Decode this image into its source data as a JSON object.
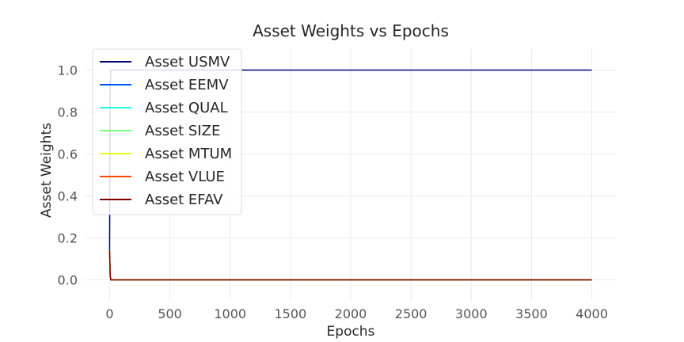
{
  "chart_data": {
    "type": "line",
    "title": "Asset Weights vs Epochs",
    "xlabel": "Epochs",
    "ylabel": "Asset Weights",
    "xlim": [
      -200,
      4200
    ],
    "ylim": [
      -0.1,
      1.1
    ],
    "xticks": [
      0,
      500,
      1000,
      1500,
      2000,
      2500,
      3000,
      3500,
      4000
    ],
    "yticks": [
      0.0,
      0.2,
      0.4,
      0.6,
      0.8,
      1.0
    ],
    "ytick_labels": [
      "0.0",
      "0.2",
      "0.4",
      "0.6",
      "0.8",
      "1.0"
    ],
    "grid": true,
    "legend_position": "upper-left",
    "series": [
      {
        "name": "Asset USMV",
        "color": "#00007f",
        "x": [
          0,
          4,
          10,
          4000
        ],
        "y": [
          0.14,
          0.9,
          1.0,
          1.0
        ]
      },
      {
        "name": "Asset EEMV",
        "color": "#0055ff",
        "x": [
          0,
          5,
          10,
          4000
        ],
        "y": [
          0.14,
          0.02,
          0.0,
          0.0
        ]
      },
      {
        "name": "Asset QUAL",
        "color": "#19ffe5",
        "x": [
          0,
          5,
          10,
          4000
        ],
        "y": [
          0.14,
          0.02,
          0.0,
          0.0
        ]
      },
      {
        "name": "Asset SIZE",
        "color": "#7cff79",
        "x": [
          0,
          5,
          10,
          4000
        ],
        "y": [
          0.14,
          0.02,
          0.0,
          0.0
        ]
      },
      {
        "name": "Asset MTUM",
        "color": "#e5ff19",
        "x": [
          0,
          5,
          10,
          4000
        ],
        "y": [
          0.14,
          0.02,
          0.0,
          0.0
        ]
      },
      {
        "name": "Asset VLUE",
        "color": "#ff4a00",
        "x": [
          0,
          5,
          10,
          4000
        ],
        "y": [
          0.14,
          0.02,
          0.0,
          0.0
        ]
      },
      {
        "name": "Asset EFAV",
        "color": "#7f0000",
        "x": [
          0,
          5,
          10,
          4000
        ],
        "y": [
          0.14,
          0.02,
          0.0,
          0.0
        ]
      }
    ]
  }
}
